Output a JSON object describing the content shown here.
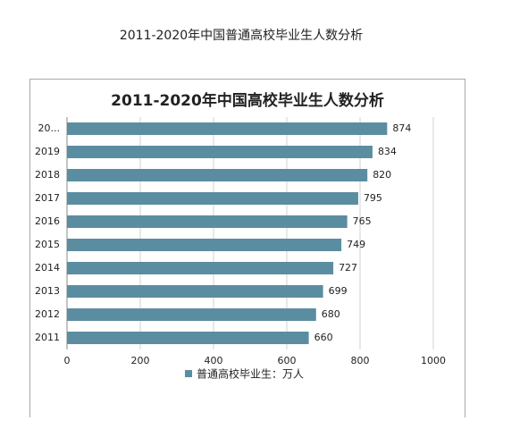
{
  "caption": "2011-2020年中国普通高校毕业生人数分析",
  "chart_data": {
    "type": "bar",
    "orientation": "horizontal",
    "title": "2011-2020年中国高校毕业生人数分析",
    "categories": [
      "20...",
      "2019",
      "2018",
      "2017",
      "2016",
      "2015",
      "2014",
      "2013",
      "2012",
      "2011"
    ],
    "series": [
      {
        "name": "普通高校毕业生：万人",
        "color": "#5b8da1",
        "values": [
          874,
          834,
          820,
          795,
          765,
          749,
          727,
          699,
          680,
          660
        ]
      }
    ],
    "xlim": [
      0,
      1000
    ],
    "xticks": [
      0,
      200,
      400,
      600,
      800,
      1000
    ],
    "grid": true
  }
}
